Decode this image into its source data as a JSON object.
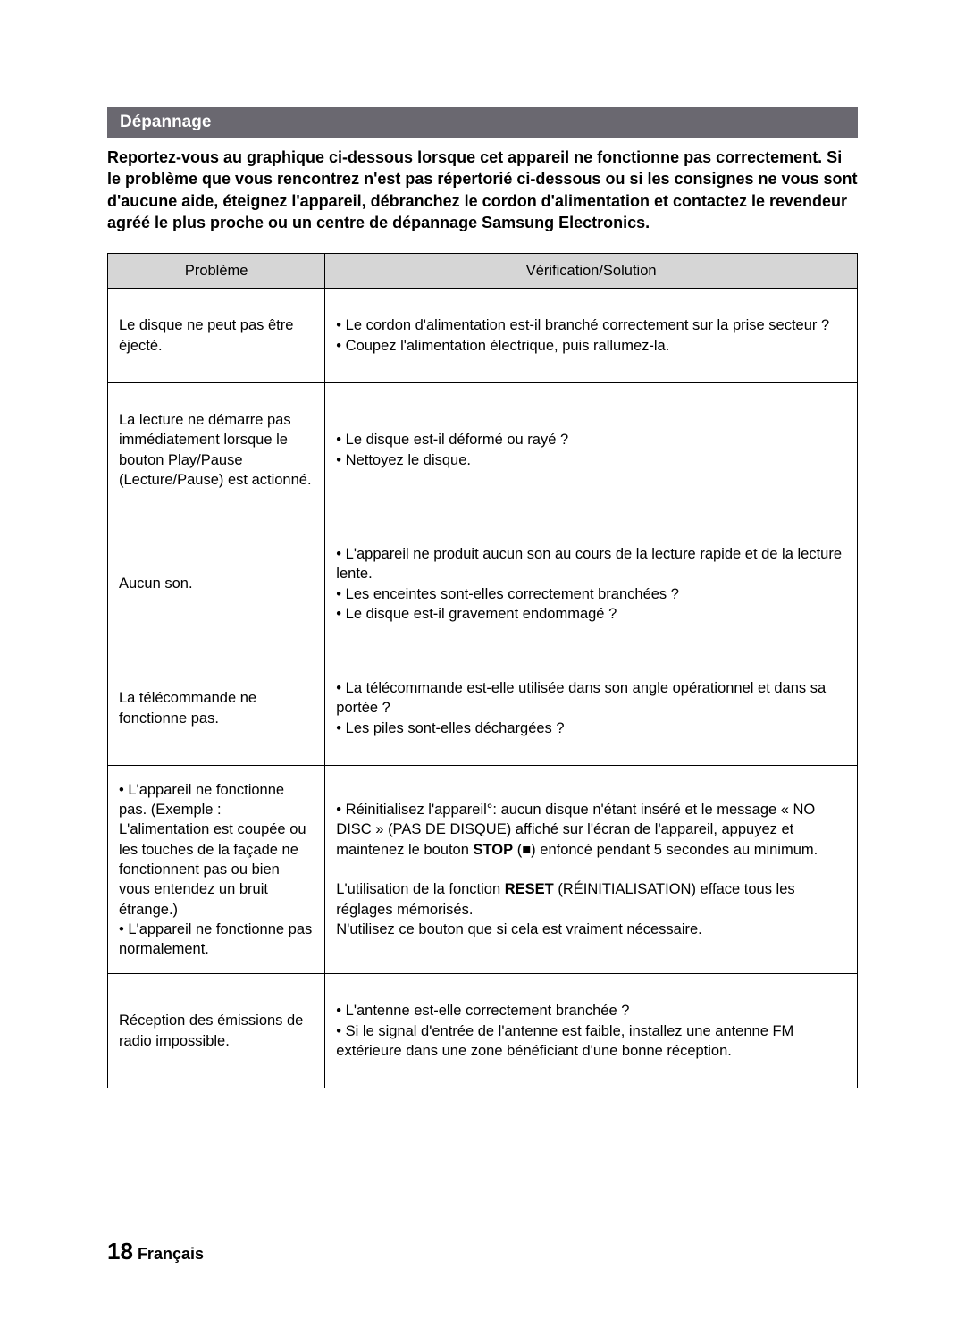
{
  "section_title": "Dépannage",
  "intro_text": "Reportez-vous au graphique ci-dessous lorsque cet appareil ne fonctionne pas correctement. Si le problème que vous rencontrez n'est pas répertorié ci-dessous ou si les consignes ne vous sont d'aucune aide, éteignez l'appareil, débranchez le cordon d'alimentation et contactez le revendeur agréé le plus proche ou un centre de dépannage Samsung Electronics.",
  "table": {
    "header_problem": "Problème",
    "header_solution": "Vérification/Solution",
    "rows": [
      {
        "problem_html": "Le disque ne peut pas être éjecté.",
        "solution_html": "• Le cordon d'alimentation est-il branché correctement sur la prise  secteur ?<br>• Coupez l'alimentation électrique, puis rallumez-la."
      },
      {
        "problem_html": "La lecture ne démarre pas immédiatement lorsque le bouton Play/Pause (Lecture/Pause) est actionné.",
        "solution_html": "• Le disque est-il déformé ou rayé ?<br>• Nettoyez le disque."
      },
      {
        "problem_html": "Aucun son.",
        "solution_html": "• L'appareil ne produit aucun son au cours de la lecture rapide et de la lecture lente.<br>• Les enceintes sont-elles correctement branchées ?<br>• Le disque est-il gravement endommagé ?"
      },
      {
        "problem_html": "La télécommande ne fonctionne pas.",
        "solution_html": "• La télécommande est-elle utilisée dans son angle opérationnel et dans sa portée ?<br>• Les piles sont-elles déchargées ?"
      },
      {
        "problem_html": "• L'appareil ne fonctionne pas. (Exemple : L'alimentation est coupée ou les touches de la façade ne fonctionnent pas ou bien vous entendez un bruit étrange.)<br>• L'appareil ne fonctionne pas normalement.",
        "solution_html": "• Réinitialisez l'appareil°: aucun disque n'étant inséré et le message « NO DISC » (PAS DE DISQUE) affiché sur l'écran de l'appareil, appuyez et maintenez le bouton <b>STOP</b> (■) enfoncé pendant 5 secondes au minimum.<br><br>L'utilisation de la fonction <b>RESET</b> (RÉINITIALISATION) efface tous les réglages mémorisés.<br>N'utilisez ce bouton que si cela est vraiment nécessaire."
      },
      {
        "problem_html": "Réception des émissions de radio impossible.",
        "solution_html": "• L'antenne est-elle correctement branchée ?<br>• Si le signal d'entrée de l'antenne est faible, installez une antenne FM extérieure dans une zone bénéficiant d'une bonne réception."
      }
    ]
  },
  "footer": {
    "page_number": "18",
    "language": "Français"
  }
}
